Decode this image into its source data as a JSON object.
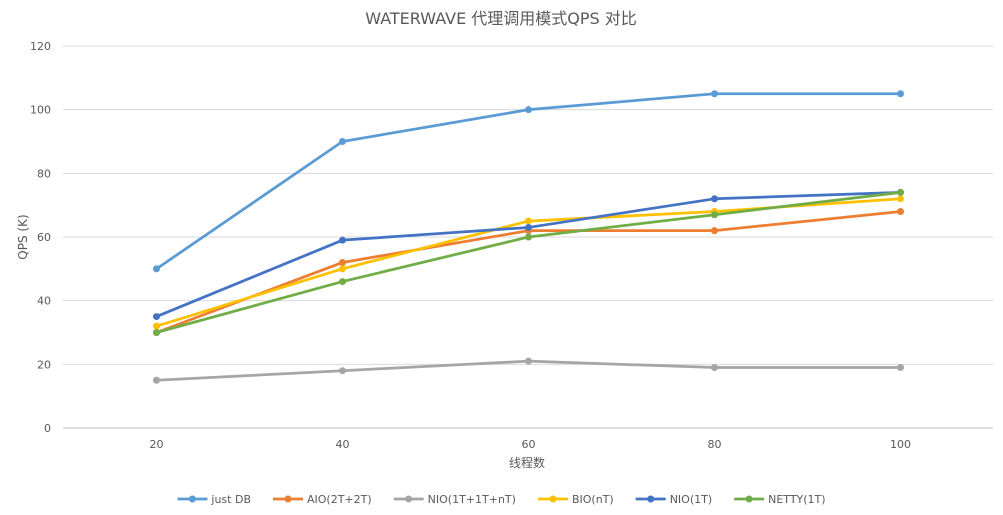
{
  "chart_data": {
    "type": "line",
    "title": "WATERWAVE 代理调用模式QPS 对比",
    "xlabel": "线程数",
    "ylabel": "QPS (K)",
    "categories": [
      "20",
      "40",
      "60",
      "80",
      "100"
    ],
    "ylim": [
      0,
      120
    ],
    "yticks": [
      0,
      20,
      40,
      60,
      80,
      100,
      120
    ],
    "grid": true,
    "legend_position": "bottom",
    "series": [
      {
        "name": "just DB",
        "color": "#5B9BD5",
        "values": [
          50,
          90,
          100,
          105,
          105
        ]
      },
      {
        "name": "AIO(2T+2T)",
        "color": "#ED7D31",
        "values": [
          30,
          52,
          62,
          62,
          68
        ]
      },
      {
        "name": "NIO(1T+1T+nT)",
        "color": "#A5A5A5",
        "values": [
          15,
          18,
          21,
          19,
          19
        ]
      },
      {
        "name": "BIO(nT)",
        "color": "#FFC000",
        "values": [
          32,
          50,
          65,
          68,
          72
        ]
      },
      {
        "name": "NIO(1T)",
        "color": "#4472C4",
        "values": [
          35,
          59,
          63,
          72,
          74
        ]
      },
      {
        "name": "NETTY(1T)",
        "color": "#70AD47",
        "values": [
          30,
          46,
          60,
          67,
          74
        ]
      }
    ]
  }
}
